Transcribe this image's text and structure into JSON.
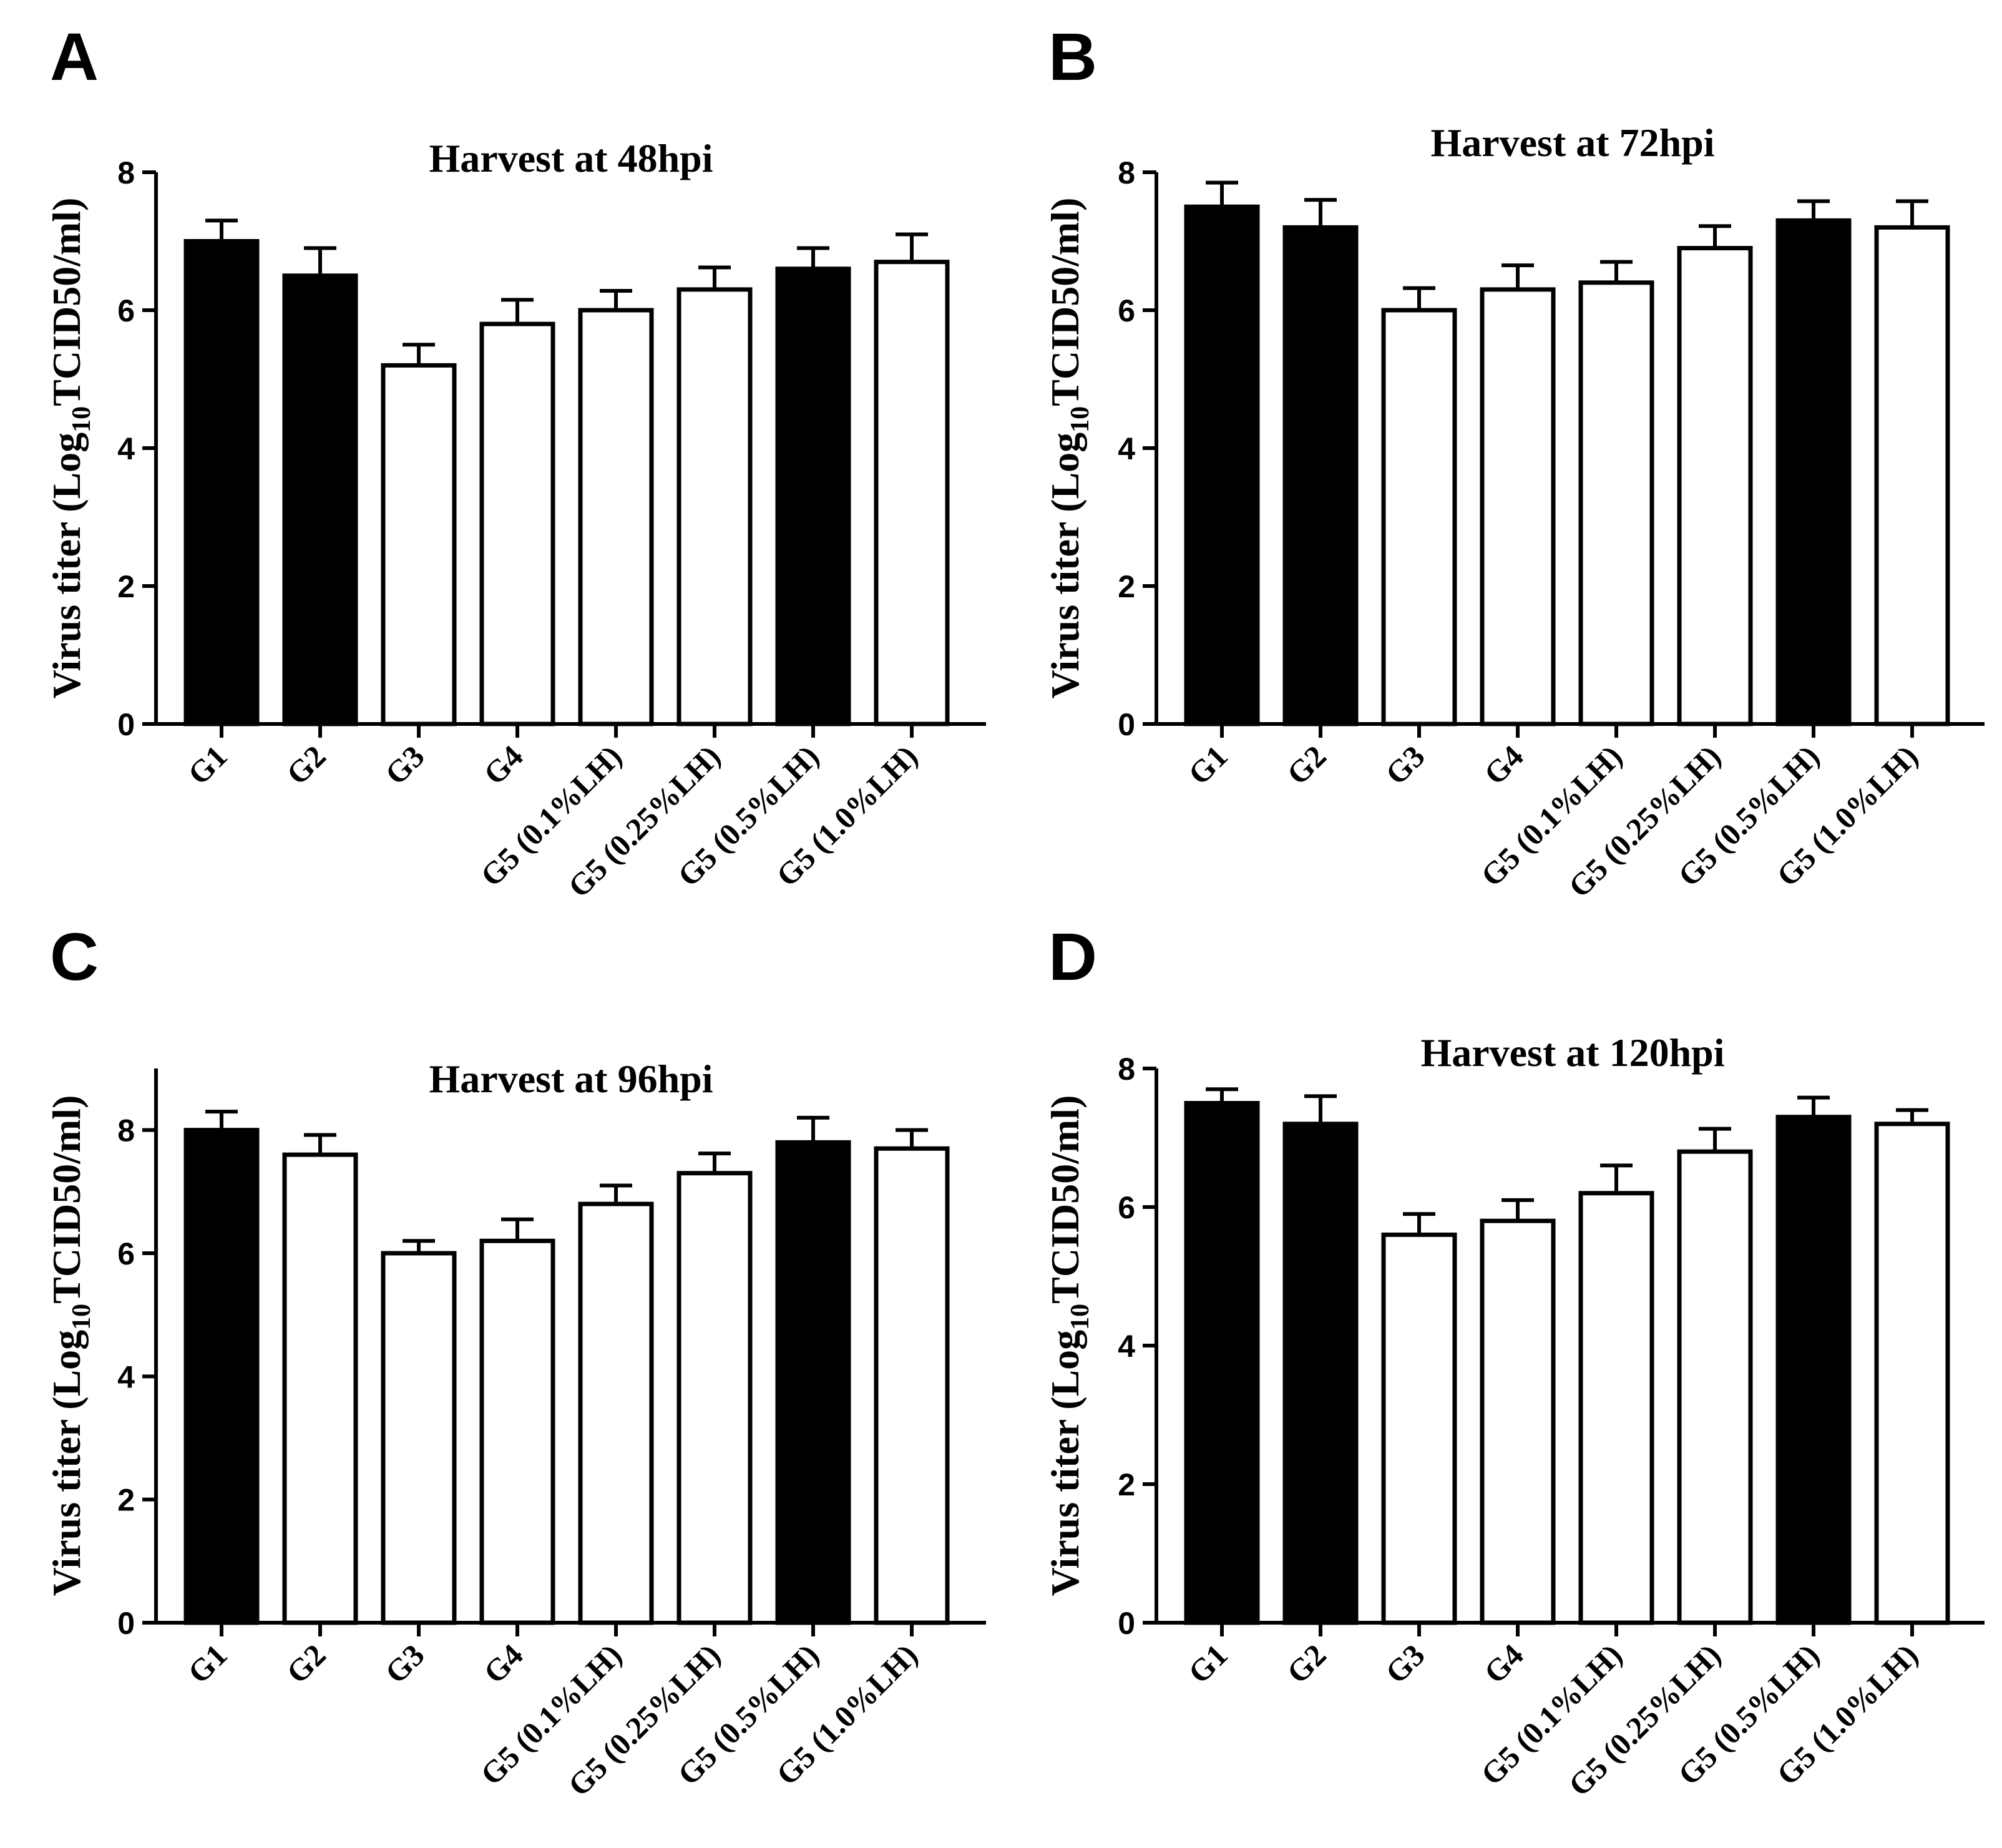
{
  "colors": {
    "filled": "#000000",
    "open": "#ffffff",
    "stroke": "#000000"
  },
  "chart_data": [
    {
      "panel": "A",
      "type": "bar",
      "title": "Harvest at 48hpi",
      "ylabel_main": "Virus titer (Log",
      "ylabel_sub": "10",
      "ylabel_end": "TCID50/ml)",
      "categories": [
        "G1",
        "G2",
        "G3",
        "G4",
        "G5 (0.1%LH)",
        "G5 (0.25%LH)",
        "G5 (0.5%LH)",
        "G5 (1.0%LH)"
      ],
      "values": [
        7.0,
        6.5,
        5.2,
        5.8,
        6.0,
        6.3,
        6.6,
        6.7
      ],
      "errors": [
        0.3,
        0.4,
        0.3,
        0.35,
        0.28,
        0.32,
        0.3,
        0.4
      ],
      "fill": [
        "filled",
        "filled",
        "open",
        "open",
        "open",
        "open",
        "filled",
        "open"
      ],
      "ylim": [
        0,
        8
      ],
      "yticks": [
        "0",
        "2",
        "4",
        "6",
        "8"
      ]
    },
    {
      "panel": "B",
      "type": "bar",
      "title": "Harvest at 72hpi",
      "ylabel_main": "Virus titer (Log",
      "ylabel_sub": "10",
      "ylabel_end": "TCID50/ml)",
      "categories": [
        "G1",
        "G2",
        "G3",
        "G4",
        "G5 (0.1%LH)",
        "G5 (0.25%LH)",
        "G5 (0.5%LH)",
        "G5 (1.0%LH)"
      ],
      "values": [
        7.5,
        7.2,
        6.0,
        6.3,
        6.4,
        6.9,
        7.3,
        7.2
      ],
      "errors": [
        0.35,
        0.4,
        0.32,
        0.35,
        0.3,
        0.32,
        0.28,
        0.38
      ],
      "fill": [
        "filled",
        "filled",
        "open",
        "open",
        "open",
        "open",
        "filled",
        "open"
      ],
      "ylim": [
        0,
        8
      ],
      "yticks": [
        "0",
        "2",
        "4",
        "6",
        "8"
      ]
    },
    {
      "panel": "C",
      "type": "bar",
      "title": "Harvest at 96hpi",
      "ylabel_main": "Virus titer (Log",
      "ylabel_sub": "10",
      "ylabel_end": "TCID50/ml)",
      "categories": [
        "G1",
        "G2",
        "G3",
        "G4",
        "G5 (0.1%LH)",
        "G5 (0.25%LH)",
        "G5 (0.5%LH)",
        "G5 (1.0%LH)"
      ],
      "values": [
        8.0,
        7.6,
        6.0,
        6.2,
        6.8,
        7.3,
        7.8,
        7.7
      ],
      "errors": [
        0.3,
        0.32,
        0.2,
        0.35,
        0.3,
        0.32,
        0.4,
        0.3
      ],
      "fill": [
        "filled",
        "open",
        "open",
        "open",
        "open",
        "open",
        "filled",
        "open"
      ],
      "ylim": [
        0,
        9
      ],
      "yticks": [
        "0",
        "2",
        "4",
        "6",
        "8"
      ]
    },
    {
      "panel": "D",
      "type": "bar",
      "title": "Harvest at 120hpi",
      "ylabel_main": "Virus titer (Log",
      "ylabel_sub": "10",
      "ylabel_end": "TCID50/ml)",
      "categories": [
        "G1",
        "G2",
        "G3",
        "G4",
        "G5 (0.1%LH)",
        "G5 (0.25%LH)",
        "G5 (0.5%LH)",
        "G5 (1.0%LH)"
      ],
      "values": [
        7.5,
        7.2,
        5.6,
        5.8,
        6.2,
        6.8,
        7.3,
        7.2
      ],
      "errors": [
        0.2,
        0.4,
        0.3,
        0.3,
        0.4,
        0.33,
        0.28,
        0.2
      ],
      "fill": [
        "filled",
        "filled",
        "open",
        "open",
        "open",
        "open",
        "filled",
        "open"
      ],
      "ylim": [
        0,
        8
      ],
      "yticks": [
        "0",
        "2",
        "4",
        "6",
        "8"
      ]
    }
  ]
}
